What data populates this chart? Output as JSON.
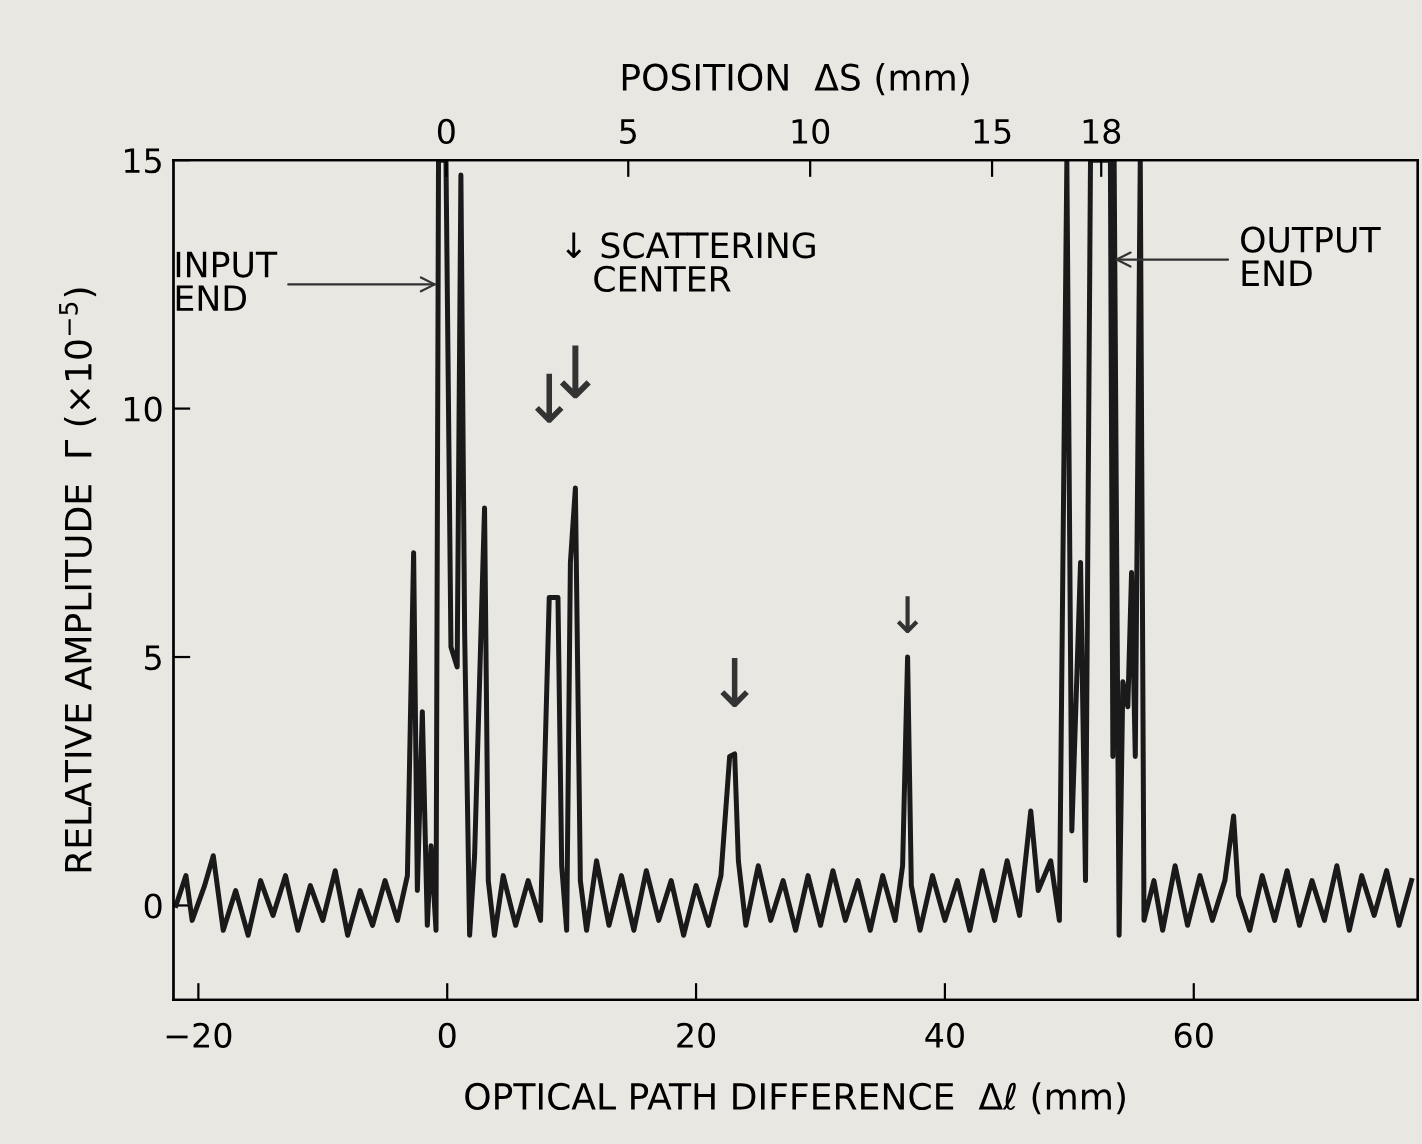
{
  "chart_data": {
    "type": "line",
    "xlabel": "OPTICAL PATH DIFFERENCE  Δℓ (mm)",
    "x2label": "POSITION  ΔS (mm)",
    "ylabel": "RELATIVE AMPLITUDE  Γ (×10$^{−5}$)",
    "xlim": [
      -22,
      78
    ],
    "xticks": [
      {
        "value": -20,
        "label": "−20"
      },
      0,
      20,
      40,
      60
    ],
    "x2lim": [
      -7.5,
      26.7
    ],
    "x2ticks": [
      0,
      5,
      10,
      15,
      18
    ],
    "ylim": [
      -1.9,
      15
    ],
    "yticks": [
      0,
      5,
      10,
      15
    ],
    "grid": false,
    "marker": "none",
    "line_style": "solid",
    "annotations": [
      {
        "text": "INPUT\nEND",
        "x": -0.8,
        "y": 12.5
      },
      {
        "text": "OUTPUT\nEND",
        "x": 53.6,
        "y": 13.0
      },
      "↓ SCATTERING\n   CENTER",
      {
        "text": "↓",
        "x": 8.2,
        "y": 6.2
      },
      {
        "text": "↓",
        "x": 10.3,
        "y": 8.4
      },
      {
        "text": "↓",
        "x": 23.1,
        "y": 3.05
      },
      {
        "text": "↓",
        "x": 37.0,
        "y": 5.0
      }
    ],
    "series": [
      {
        "color": "#1a1a1a",
        "x": [
          -21.8,
          -21,
          -20.5,
          -19.5,
          -18.8,
          -18,
          -17,
          -16,
          -15,
          -14,
          -13,
          -12,
          -11,
          -10,
          -9,
          -8,
          -7,
          -6,
          -5,
          -4,
          -3.2,
          -2.7,
          -2.4,
          -2.0,
          -1.6,
          -1.3,
          -0.9,
          -0.7,
          -0.1,
          0.3,
          0.8,
          1.1,
          1.4,
          1.8,
          2.2,
          2.6,
          3.0,
          3.3,
          3.8,
          4.5,
          5.5,
          6.5,
          7.5,
          8.2,
          8.9,
          9.2,
          9.6,
          9.9,
          10.3,
          10.7,
          11.2,
          12,
          13,
          14,
          15,
          16,
          17,
          18,
          19,
          20,
          21,
          22,
          22.7,
          23.1,
          23.4,
          24,
          25,
          26,
          27,
          28,
          29,
          30,
          31,
          32,
          33,
          34,
          35,
          36,
          36.6,
          37.0,
          37.3,
          38,
          39,
          40,
          41,
          42,
          43,
          44,
          45,
          46,
          46.9,
          47.5,
          48.5,
          49.2,
          49.8,
          50.2,
          50.9,
          51.3,
          51.7,
          53.3,
          53.5,
          53.6,
          54.0,
          54.3,
          54.7,
          55.0,
          55.3,
          55.7,
          56.0,
          56.8,
          57.5,
          58.5,
          59.5,
          60.5,
          61.5,
          62.5,
          63.2,
          63.6,
          64.5,
          65.5,
          66.5,
          67.5,
          68.5,
          69.5,
          70.5,
          71.5,
          72.5,
          73.5,
          74.5,
          75.5,
          76.5,
          77.5
        ],
        "values": [
          0.0,
          0.6,
          -0.3,
          0.4,
          1.0,
          -0.5,
          0.3,
          -0.6,
          0.5,
          -0.2,
          0.6,
          -0.5,
          0.4,
          -0.3,
          0.7,
          -0.6,
          0.3,
          -0.4,
          0.5,
          -0.3,
          0.6,
          7.1,
          0.3,
          3.9,
          -0.4,
          1.2,
          -0.5,
          15,
          15,
          5.2,
          4.8,
          14.7,
          5.5,
          -0.6,
          1.0,
          4.5,
          8.0,
          0.5,
          -0.6,
          0.6,
          -0.4,
          0.5,
          -0.3,
          6.2,
          6.2,
          0.8,
          -0.5,
          6.9,
          8.4,
          0.5,
          -0.5,
          0.9,
          -0.4,
          0.6,
          -0.5,
          0.7,
          -0.3,
          0.5,
          -0.6,
          0.4,
          -0.4,
          0.6,
          3.0,
          3.05,
          0.9,
          -0.4,
          0.8,
          -0.3,
          0.5,
          -0.5,
          0.6,
          -0.4,
          0.7,
          -0.3,
          0.5,
          -0.5,
          0.6,
          -0.3,
          0.8,
          5.0,
          0.4,
          -0.5,
          0.6,
          -0.3,
          0.5,
          -0.5,
          0.7,
          -0.3,
          0.9,
          -0.2,
          1.9,
          0.3,
          0.9,
          -0.3,
          15,
          1.5,
          6.9,
          0.5,
          15,
          15,
          3.0,
          15,
          -0.6,
          4.5,
          4.0,
          6.7,
          3.0,
          15,
          -0.3,
          0.5,
          -0.5,
          0.8,
          -0.4,
          0.6,
          -0.3,
          0.5,
          1.8,
          0.2,
          -0.5,
          0.6,
          -0.3,
          0.7,
          -0.4,
          0.5,
          -0.3,
          0.8,
          -0.5,
          0.6,
          -0.2,
          0.7,
          -0.4,
          0.5
        ]
      }
    ]
  }
}
